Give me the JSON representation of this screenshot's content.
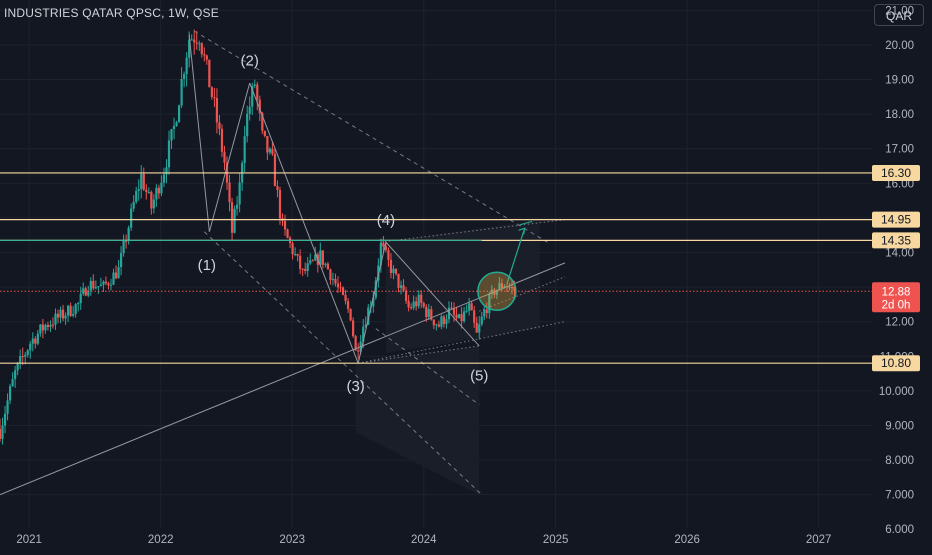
{
  "header": {
    "symbol": "INDUSTRIES QATAR QPSC, 1W, QSE",
    "currency_button": "QAR"
  },
  "colors": {
    "background": "#131722",
    "up": "#26a69a",
    "down": "#ef5350",
    "level_line": "#f7d8a0",
    "projection": "#22ab94",
    "circle": "#d7a23c"
  },
  "price_badge": {
    "value": "12.88",
    "countdown": "2d 0h"
  },
  "chart_data": {
    "type": "candlestick",
    "title": "INDUSTRIES QATAR QPSC, 1W, QSE",
    "ylim": [
      5.4,
      21.3
    ],
    "y_ticks": [
      "6.000",
      "7.000",
      "8.000",
      "9.000",
      "10.000",
      "11.000",
      "12.00",
      "13.00",
      "14.00",
      "15.00",
      "16.00",
      "17.00",
      "18.00",
      "19.00",
      "20.00",
      "21.00"
    ],
    "x_ticks": [
      "2021",
      "2022",
      "2023",
      "2024",
      "2025",
      "2026",
      "2027"
    ],
    "horizontal_levels": [
      "16.30",
      "14.95",
      "14.35",
      "10.80"
    ],
    "last_price": 12.88,
    "wave_labels": [
      "(1)",
      "(2)",
      "(3)",
      "(4)",
      "(5)"
    ],
    "close_path": [
      [
        "2020-10-12",
        8.9
      ],
      [
        "2020-11-23",
        10.5
      ],
      [
        "2021-01-04",
        11.4
      ],
      [
        "2021-02-15",
        11.9
      ],
      [
        "2021-04-05",
        12.2
      ],
      [
        "2021-05-17",
        12.5
      ],
      [
        "2021-06-14",
        13.1
      ],
      [
        "2021-07-26",
        13.0
      ],
      [
        "2021-09-06",
        13.5
      ],
      [
        "2021-10-18",
        15.4
      ],
      [
        "2021-11-08",
        16.2
      ],
      [
        "2021-12-06",
        15.3
      ],
      [
        "2022-01-10",
        16.4
      ],
      [
        "2022-02-07",
        17.6
      ],
      [
        "2022-03-07",
        19.4
      ],
      [
        "2022-03-21",
        20.2
      ],
      [
        "2022-04-18",
        20.3
      ],
      [
        "2022-05-30",
        18.2
      ],
      [
        "2022-06-27",
        16.6
      ],
      [
        "2022-07-18",
        14.6
      ],
      [
        "2022-08-08",
        15.9
      ],
      [
        "2022-08-22",
        17.6
      ],
      [
        "2022-09-19",
        18.9
      ],
      [
        "2022-10-10",
        17.3
      ],
      [
        "2022-11-07",
        16.6
      ],
      [
        "2022-12-05",
        14.7
      ],
      [
        "2023-01-09",
        13.9
      ],
      [
        "2023-01-30",
        13.4
      ],
      [
        "2023-02-20",
        13.6
      ],
      [
        "2023-03-20",
        13.9
      ],
      [
        "2023-04-17",
        13.4
      ],
      [
        "2023-05-15",
        12.8
      ],
      [
        "2023-06-12",
        12.2
      ],
      [
        "2023-06-26",
        11.1
      ],
      [
        "2023-07-17",
        11.9
      ],
      [
        "2023-08-14",
        12.8
      ],
      [
        "2023-09-04",
        14.2
      ],
      [
        "2023-09-25",
        13.7
      ],
      [
        "2023-10-23",
        13.1
      ],
      [
        "2023-11-20",
        12.4
      ],
      [
        "2023-12-18",
        12.6
      ],
      [
        "2024-01-15",
        12.2
      ],
      [
        "2024-02-12",
        11.9
      ],
      [
        "2024-03-11",
        12.3
      ],
      [
        "2024-04-08",
        12.0
      ],
      [
        "2024-05-06",
        12.4
      ],
      [
        "2024-05-27",
        11.6
      ],
      [
        "2024-06-17",
        12.3
      ],
      [
        "2024-07-15",
        12.9
      ],
      [
        "2024-08-12",
        13.1
      ],
      [
        "2024-09-09",
        12.9
      ]
    ]
  }
}
